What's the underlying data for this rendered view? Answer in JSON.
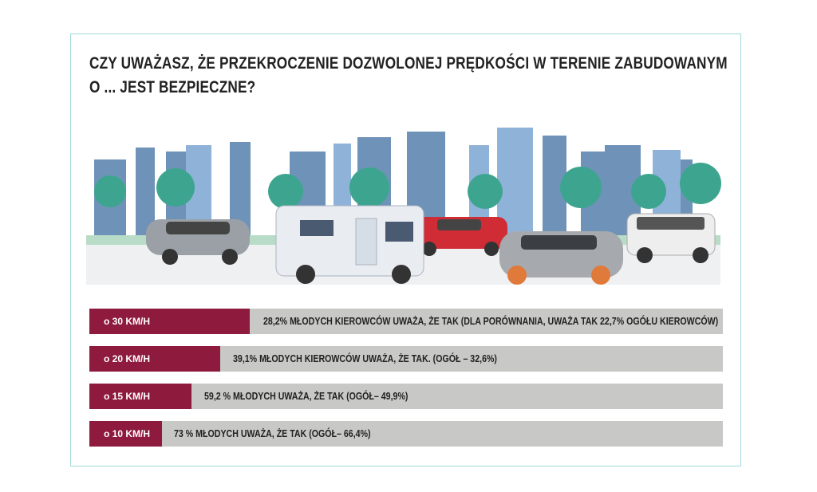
{
  "header": {
    "title_lines": [
      "CZY UWAŻASZ, ŻE PRZEKROCZENIE DOZWOLONEJ PRĘDKOŚCI W TERENIE ZABUDOWANYM",
      "O ... JEST BEZPIECZNE?"
    ]
  },
  "rows": [
    {
      "label": "o 30 KM/H",
      "text": "28,2% MŁODYCH KIEROWCÓW UWAŻA, ŻE TAK (DLA PORÓWNANIA, UWAŻA TAK 22,7% OGÓŁU KIEROWCÓW)"
    },
    {
      "label": "o 20 KM/H",
      "text": "39,1% MŁODYCH KIEROWCÓW UWAŻA, ŻE TAK. (OGÓŁ – 32,6%)"
    },
    {
      "label": "o 15 KM/H",
      "text": "59,2 % MŁODYCH UWAŻA, ŻE TAK (OGÓŁ– 49,9%)"
    },
    {
      "label": "o 10 KM/H",
      "text": "73 % MŁODYCH UWAŻA, ŻE TAK (OGÓŁ– 66,4%)"
    }
  ]
}
